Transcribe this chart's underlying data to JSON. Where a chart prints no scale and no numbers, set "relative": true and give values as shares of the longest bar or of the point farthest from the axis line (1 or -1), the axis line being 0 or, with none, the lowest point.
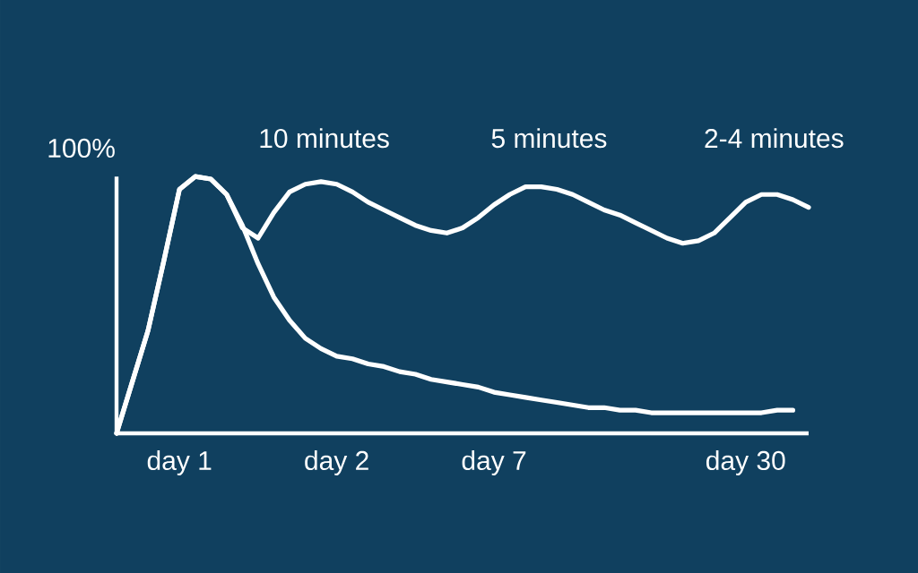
{
  "chart_data": {
    "type": "line",
    "relative": true,
    "ylabel": "100%",
    "categories": [
      null,
      null,
      null,
      null,
      "day 1",
      null,
      null,
      null,
      null,
      null,
      null,
      null,
      null,
      null,
      "day 2",
      null,
      null,
      null,
      null,
      null,
      null,
      null,
      null,
      null,
      "day 7",
      null,
      null,
      null,
      null,
      null,
      null,
      null,
      null,
      null,
      null,
      null,
      null,
      null,
      null,
      null,
      "day 30",
      null,
      null,
      null,
      null
    ],
    "series": [
      {
        "color": "#ffffff",
        "values": [
          0,
          0.2,
          0.4,
          0.67,
          0.95,
          1.0,
          0.99,
          0.93,
          0.81,
          0.66,
          0.53,
          0.44,
          0.37,
          0.33,
          0.3,
          0.29,
          0.27,
          0.26,
          0.24,
          0.23,
          0.21,
          0.2,
          0.19,
          0.18,
          0.16,
          0.15,
          0.14,
          0.13,
          0.12,
          0.11,
          0.1,
          0.1,
          0.09,
          0.09,
          0.08,
          0.08,
          0.08,
          0.08,
          0.08,
          0.08,
          0.08,
          0.08,
          0.09,
          0.09,
          null
        ]
      },
      {
        "color": "#ffffff",
        "values": [
          0,
          0.2,
          0.4,
          0.67,
          0.95,
          1.0,
          0.99,
          0.93,
          0.8,
          0.76,
          0.86,
          0.94,
          0.97,
          0.98,
          0.97,
          0.94,
          0.9,
          0.87,
          0.84,
          0.81,
          0.79,
          0.78,
          0.8,
          0.84,
          0.89,
          0.93,
          0.96,
          0.96,
          0.95,
          0.93,
          0.9,
          0.87,
          0.85,
          0.82,
          0.79,
          0.76,
          0.74,
          0.75,
          0.78,
          0.84,
          0.9,
          0.93,
          0.93,
          0.91,
          0.88
        ]
      }
    ],
    "annotations": [
      "10 minutes",
      "5 minutes",
      "2-4 minutes"
    ]
  }
}
